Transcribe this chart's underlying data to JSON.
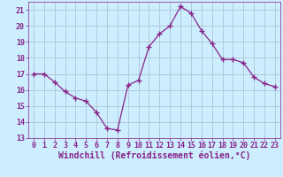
{
  "x": [
    0,
    1,
    2,
    3,
    4,
    5,
    6,
    7,
    8,
    9,
    10,
    11,
    12,
    13,
    14,
    15,
    16,
    17,
    18,
    19,
    20,
    21,
    22,
    23
  ],
  "y": [
    17.0,
    17.0,
    16.5,
    15.9,
    15.5,
    15.3,
    14.6,
    13.6,
    13.5,
    16.3,
    16.6,
    18.7,
    19.5,
    20.0,
    21.2,
    20.8,
    19.7,
    18.9,
    17.9,
    17.9,
    17.7,
    16.8,
    16.4,
    16.2
  ],
  "line_color": "#882288",
  "marker": "+",
  "marker_size": 4,
  "bg_color": "#cceeff",
  "grid_color": "#aabbcc",
  "xlabel": "Windchill (Refroidissement éolien,°C)",
  "xlim": [
    -0.5,
    23.5
  ],
  "ylim": [
    13,
    21.5
  ],
  "yticks": [
    13,
    14,
    15,
    16,
    17,
    18,
    19,
    20,
    21
  ],
  "xticks": [
    0,
    1,
    2,
    3,
    4,
    5,
    6,
    7,
    8,
    9,
    10,
    11,
    12,
    13,
    14,
    15,
    16,
    17,
    18,
    19,
    20,
    21,
    22,
    23
  ],
  "tick_label_fontsize": 6,
  "xlabel_fontsize": 7,
  "label_color": "#882288"
}
